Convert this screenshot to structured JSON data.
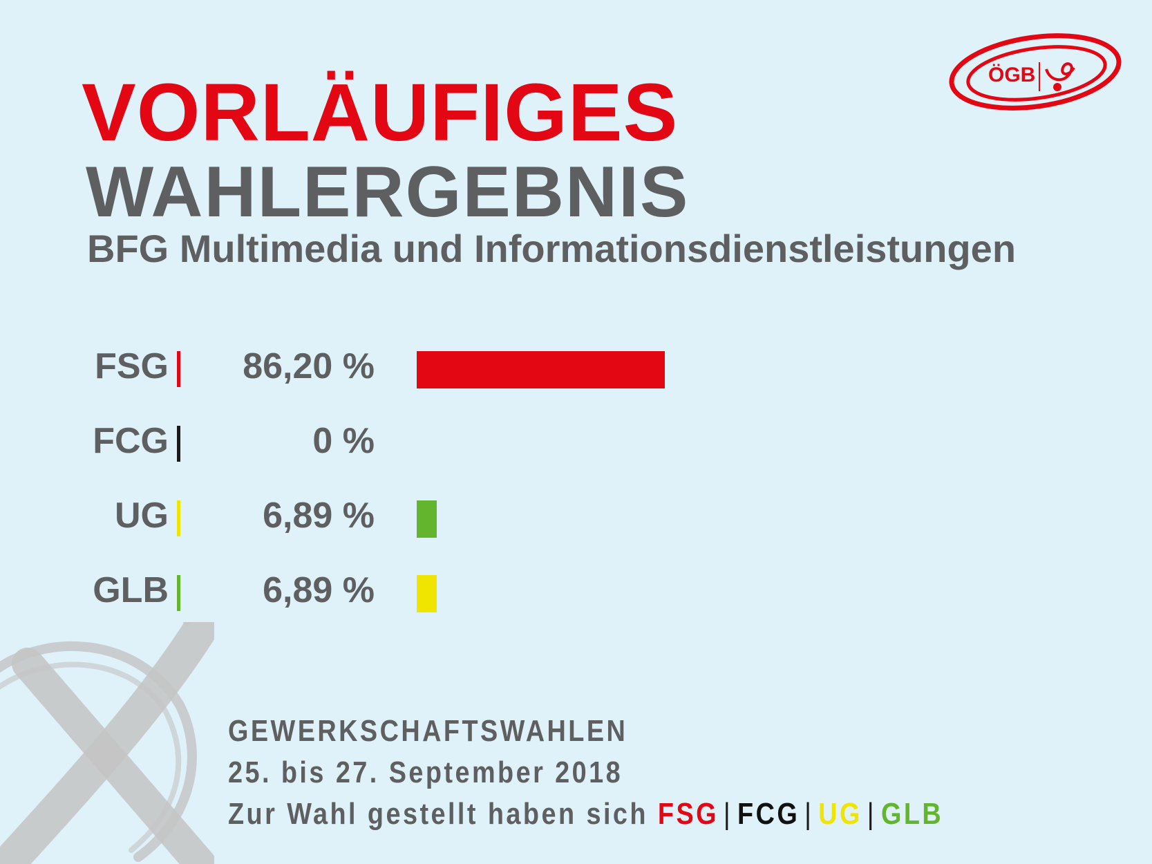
{
  "title_line1": "VORLÄUFIGES",
  "title_line2": "WAHLERGEBNIS",
  "subtitle": "BFG Multimedia und Informationsdienstleistungen",
  "logo_text": "ÖGB",
  "chart_data": {
    "type": "bar",
    "orientation": "horizontal",
    "categories": [
      "FSG",
      "FCG",
      "UG",
      "GLB"
    ],
    "values": [
      86.2,
      0,
      6.89,
      6.89
    ],
    "value_labels": [
      "86,20 %",
      "0 %",
      "6,89 %",
      "6,89 %"
    ],
    "bar_colors": [
      "#e30613",
      "#1a1a1a",
      "#63b52d",
      "#f0e500"
    ],
    "separator_colors": [
      "#e30613",
      "#1a1a1a",
      "#f0e500",
      "#63b52d"
    ],
    "xlim": [
      0,
      86.2
    ],
    "grid": false
  },
  "footer": {
    "line1": "GEWERKSCHAFTSWAHLEN",
    "line2": "25. bis 27. September 2018",
    "line3_prefix": "Zur Wahl gestellt haben sich",
    "parties": [
      {
        "name": "FSG",
        "color": "#e30613"
      },
      {
        "name": "FCG",
        "color": "#111111"
      },
      {
        "name": "UG",
        "color": "#f0e500"
      },
      {
        "name": "GLB",
        "color": "#63b52d"
      }
    ],
    "separator": "|"
  }
}
